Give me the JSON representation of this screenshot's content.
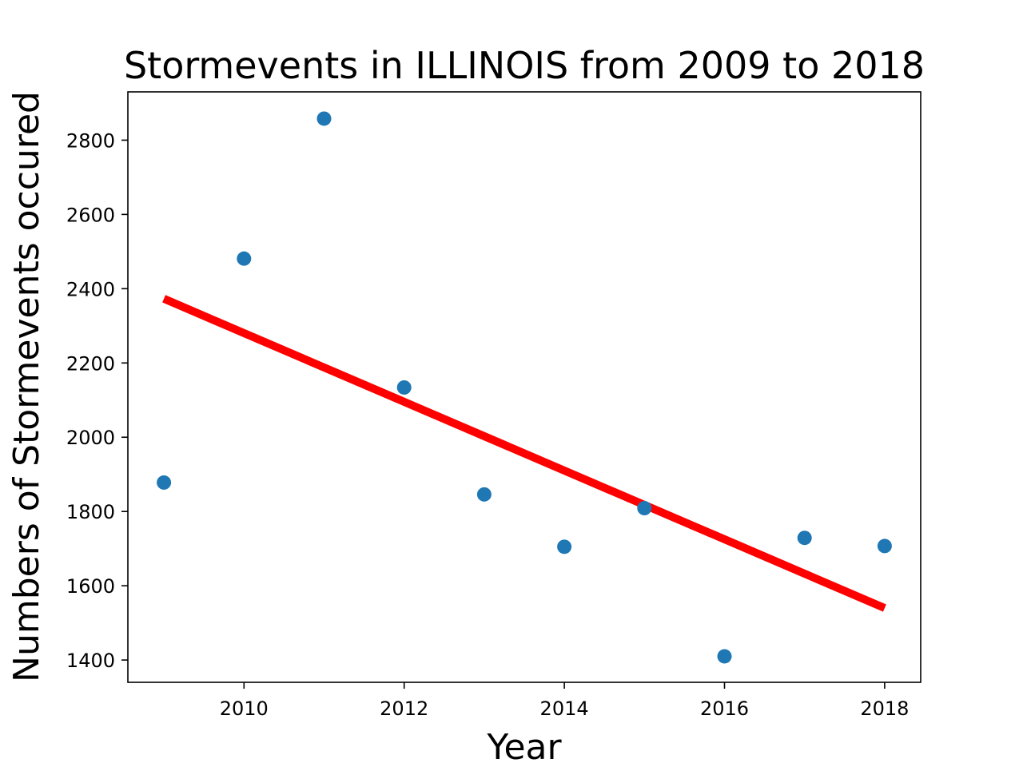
{
  "chart_data": {
    "type": "scatter",
    "title": "Stormevents in ILLINOIS from 2009 to 2018",
    "xlabel": "Year",
    "ylabel": "Numbers of Stormevents occured",
    "xlim": [
      2008.55,
      2018.45
    ],
    "ylim": [
      1340,
      2930
    ],
    "xticks": [
      2010,
      2012,
      2014,
      2016,
      2018
    ],
    "yticks": [
      1400,
      1600,
      1800,
      2000,
      2200,
      2400,
      2600,
      2800
    ],
    "grid": false,
    "series": [
      {
        "type": "scatter",
        "color": "#1f77b4",
        "x": [
          2009,
          2010,
          2011,
          2012,
          2013,
          2014,
          2015,
          2016,
          2017,
          2018
        ],
        "y": [
          1878,
          2481,
          2858,
          2134,
          1846,
          1705,
          1809,
          1410,
          1729,
          1707
        ]
      },
      {
        "type": "line",
        "color": "#ff0000",
        "x": [
          2009,
          2018
        ],
        "y": [
          2373,
          1540
        ]
      }
    ]
  }
}
